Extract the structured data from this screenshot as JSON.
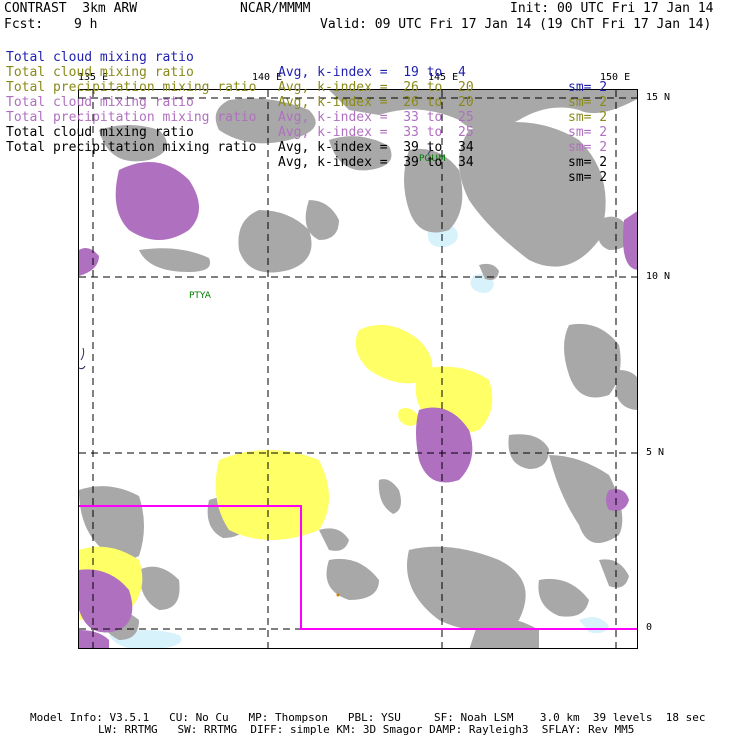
{
  "header": {
    "title_left": "CONTRAST  3km ARW",
    "center": "NCAR/MMMM",
    "init": "Init: 00 UTC Fri 17 Jan 14",
    "fcst_label": "Fcst:",
    "fcst_value": "9 h",
    "valid": "Valid: 09 UTC Fri 17 Jan 14 (19 ChT Fri 17 Jan 14)"
  },
  "legend": [
    {
      "field": "Total cloud mixing ratio",
      "avg": "Avg, k-index =  19 to  4",
      "sm": "sm= 2",
      "color": "#1f1fb0"
    },
    {
      "field": "Total cloud mixing ratio",
      "avg": "Avg, k-index =  26 to  20",
      "sm": "sm= 2",
      "color": "#8a8a1a"
    },
    {
      "field": "Total precipitation mixing ratio",
      "avg": "Avg, k-index =  26 to  20",
      "sm": "sm= 2",
      "color": "#8a8a1a"
    },
    {
      "field": "Total cloud mixing ratio",
      "avg": "Avg, k-index =  33 to  25",
      "sm": "sm= 2",
      "color": "#b070c0"
    },
    {
      "field": "Total precipitation mixing ratio",
      "avg": "Avg, k-index =  33 to  25",
      "sm": "sm= 2",
      "color": "#b070c0"
    },
    {
      "field": "Total cloud mixing ratio",
      "avg": "Avg, k-index =  39 to  34",
      "sm": "sm= 2",
      "color": "#000000"
    },
    {
      "field": "Total precipitation mixing ratio",
      "avg": "Avg, k-index =  39 to  34",
      "sm": "sm= 2",
      "color": "#000000"
    }
  ],
  "axes": {
    "lon_labels": [
      "135 E",
      "140 E",
      "145 E",
      "150 E"
    ],
    "lat_labels": [
      "15 N",
      "10 N",
      "5 N",
      "0"
    ]
  },
  "stations": [
    "PGUM",
    "PTYA"
  ],
  "footer": {
    "line1": "Model Info: V3.5.1   CU: No Cu   MP: Thompson   PBL: YSU     SF: Noah LSM    3.0 km  39 levels  18 sec",
    "line2": "LW: RRTMG   SW: RRTMG  DIFF: simple KM: 3D Smagor DAMP: Rayleigh3  SFLAY: Rev MM5"
  },
  "colors": {
    "gray_cloud": "#a8a8a8",
    "yellow_precip": "#ffff66",
    "purple_cloud": "#b070c0",
    "lightblue_cloud": "#d8f2fb",
    "domain_box": "#ff00ff",
    "station_text": "#007a00"
  },
  "icons": [
    "coastline-icon"
  ]
}
